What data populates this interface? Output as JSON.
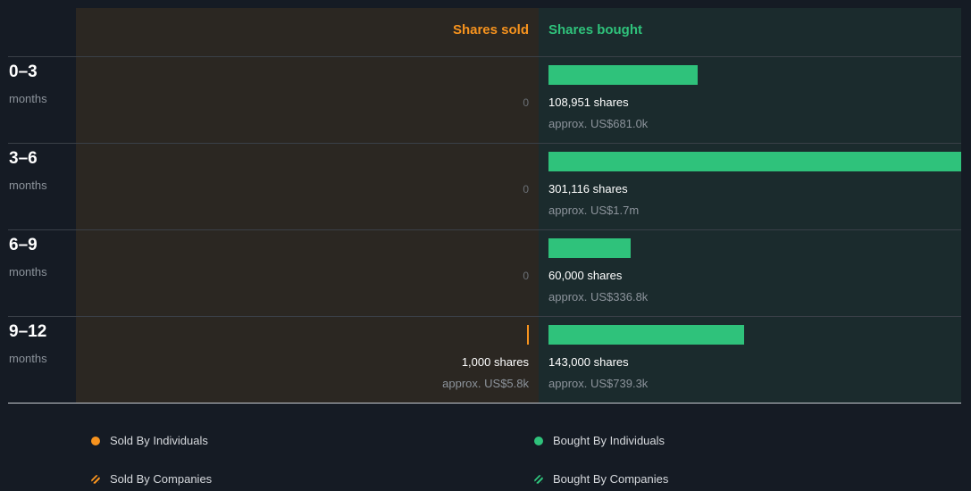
{
  "colors": {
    "sold": "#f7931e",
    "bought": "#2fc27b"
  },
  "header": {
    "sold_label": "Shares sold",
    "bought_label": "Shares bought"
  },
  "chart_data": {
    "type": "bar",
    "categories": [
      "0–3 months",
      "3–6 months",
      "6–9 months",
      "9–12 months"
    ],
    "series": [
      {
        "name": "Shares sold",
        "values": [
          0,
          0,
          0,
          1000
        ]
      },
      {
        "name": "Shares bought",
        "values": [
          108951,
          301116,
          60000,
          143000
        ]
      }
    ],
    "xlim": [
      0,
      301116
    ]
  },
  "rows": [
    {
      "period": "0–3",
      "unit": "months",
      "sold_zero": "0",
      "sold_shares": "",
      "sold_value": "",
      "bought_shares": "108,951 shares",
      "bought_value": "approx. US$681.0k"
    },
    {
      "period": "3–6",
      "unit": "months",
      "sold_zero": "0",
      "sold_shares": "",
      "sold_value": "",
      "bought_shares": "301,116 shares",
      "bought_value": "approx. US$1.7m"
    },
    {
      "period": "6–9",
      "unit": "months",
      "sold_zero": "0",
      "sold_shares": "",
      "sold_value": "",
      "bought_shares": "60,000 shares",
      "bought_value": "approx. US$336.8k"
    },
    {
      "period": "9–12",
      "unit": "months",
      "sold_zero": "",
      "sold_shares": "1,000 shares",
      "sold_value": "approx. US$5.8k",
      "bought_shares": "143,000 shares",
      "bought_value": "approx. US$739.3k"
    }
  ],
  "legend": {
    "sold_individuals": "Sold By Individuals",
    "sold_companies": "Sold By Companies",
    "bought_individuals": "Bought By Individuals",
    "bought_companies": "Bought By Companies"
  }
}
